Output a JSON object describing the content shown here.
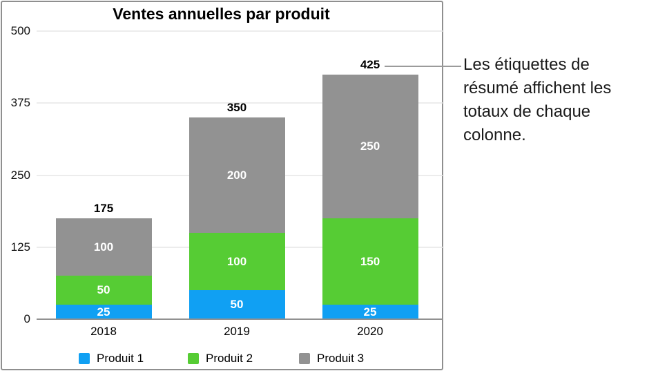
{
  "chart_data": {
    "type": "bar",
    "stacked": true,
    "title": "Ventes annuelles par produit",
    "categories": [
      "2018",
      "2019",
      "2020"
    ],
    "series": [
      {
        "name": "Produit 1",
        "color": "#10a0f3",
        "values": [
          25,
          50,
          25
        ]
      },
      {
        "name": "Produit 2",
        "color": "#56cc34",
        "values": [
          50,
          100,
          150
        ]
      },
      {
        "name": "Produit 3",
        "color": "#929292",
        "values": [
          100,
          200,
          250
        ]
      }
    ],
    "totals": [
      175,
      350,
      425
    ],
    "yticks": [
      0,
      125,
      250,
      375,
      500
    ],
    "ylim": [
      0,
      500
    ],
    "grid": true,
    "legend_position": "bottom",
    "summary_labels_shown": true
  },
  "annotation": {
    "text": "Les étiquettes de résumé affichent les totaux de chaque colonne."
  },
  "colors": {
    "chart_border": "#8f8f8f",
    "gridline": "#ececec",
    "axis_line": "#919191",
    "callout_line": "#9b9b9b",
    "segment_label_text": "#ffffff"
  }
}
